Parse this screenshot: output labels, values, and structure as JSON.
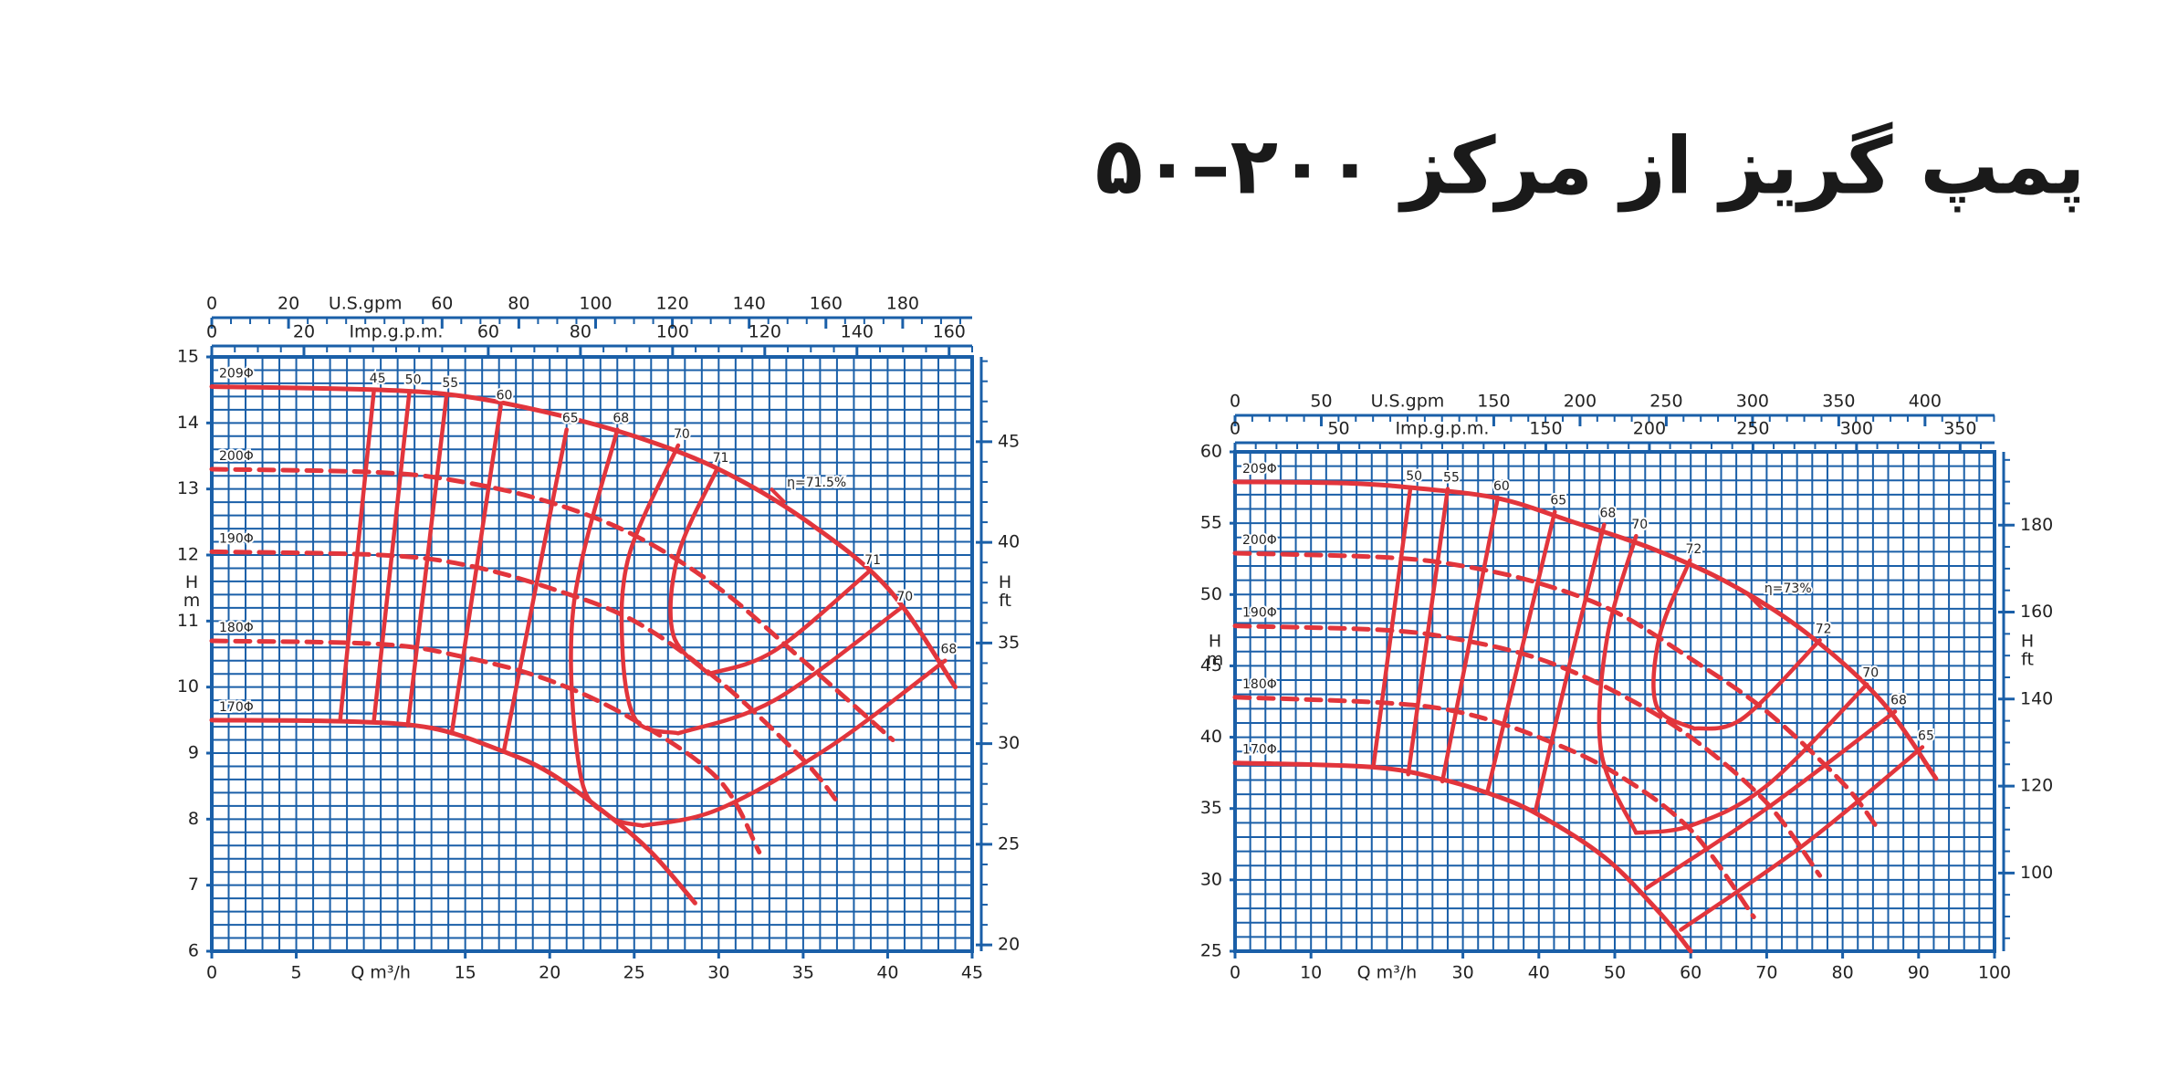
{
  "title": "پمپ گریز از مرکز ۲۰۰–۵۰",
  "chart_data": [
    {
      "type": "line",
      "xlim": [
        0,
        45
      ],
      "xticks": [
        0,
        5,
        15,
        20,
        25,
        30,
        35,
        40,
        45
      ],
      "xlabel": "Q m³/h",
      "ylim": [
        6,
        15
      ],
      "yticks": [
        6,
        7,
        8,
        9,
        10,
        11,
        12,
        13,
        14,
        15
      ],
      "ylabel": "H",
      "yunit": "m",
      "y2lim": [
        19.69,
        49.21
      ],
      "y2ticks": [
        20,
        25,
        30,
        35,
        40,
        45
      ],
      "y2minor": 1,
      "y2label": "H",
      "y2unit": "ft",
      "top_axes": [
        {
          "label": "U.S.gpm",
          "lim": [
            0,
            198.1
          ],
          "ticks": [
            0,
            20,
            60,
            80,
            100,
            120,
            140,
            160,
            180
          ],
          "minor": 5
        },
        {
          "label": "Imp.g.p.m.",
          "lim": [
            0,
            165
          ],
          "ticks": [
            0,
            20,
            60,
            80,
            100,
            120,
            140,
            160
          ],
          "minor": 5
        }
      ],
      "grid": {
        "x": 1,
        "y": 0.2
      },
      "grid_color": "#1a5fa8",
      "series": [
        {
          "name": "209Φ",
          "color": "#e2353c",
          "dash": false,
          "x": [
            0,
            10,
            15,
            20,
            25,
            30,
            35,
            40,
            44
          ],
          "values": [
            14.55,
            14.5,
            14.4,
            14.15,
            13.8,
            13.3,
            12.55,
            11.5,
            10.0
          ]
        },
        {
          "name": "200Φ",
          "color": "#e2353c",
          "dash": true,
          "x": [
            0,
            10,
            15,
            20,
            25,
            30,
            35,
            40.3
          ],
          "values": [
            13.3,
            13.25,
            13.1,
            12.8,
            12.3,
            11.5,
            10.4,
            9.2
          ]
        },
        {
          "name": "190Φ",
          "color": "#e2353c",
          "dash": true,
          "x": [
            0,
            10,
            15,
            20,
            25,
            30,
            35,
            37.2
          ],
          "values": [
            12.05,
            12.0,
            11.85,
            11.5,
            11.0,
            10.1,
            8.9,
            8.2
          ]
        },
        {
          "name": "180Φ",
          "color": "#e2353c",
          "dash": true,
          "x": [
            0,
            10,
            15,
            20,
            25,
            30,
            32.4
          ],
          "values": [
            10.7,
            10.65,
            10.45,
            10.1,
            9.5,
            8.6,
            7.5
          ]
        },
        {
          "name": "170Φ",
          "color": "#e2353c",
          "dash": false,
          "x": [
            0,
            8,
            13,
            17,
            20,
            23.5,
            26,
            28.6
          ],
          "values": [
            9.5,
            9.48,
            9.38,
            9.05,
            8.7,
            8.05,
            7.5,
            6.73
          ]
        }
      ],
      "efficiency": [
        {
          "name": "45",
          "color": "#e2353c",
          "x": [
            9.6,
            7.6
          ],
          "values": [
            14.5,
            9.5
          ]
        },
        {
          "name": "50",
          "color": "#e2353c",
          "x": [
            11.7,
            9.6
          ],
          "values": [
            14.48,
            9.5
          ]
        },
        {
          "name": "55",
          "color": "#e2353c",
          "x": [
            13.9,
            11.6
          ],
          "values": [
            14.43,
            9.42
          ]
        },
        {
          "name": "60",
          "color": "#e2353c",
          "x": [
            17.1,
            14.2
          ],
          "values": [
            14.25,
            9.3
          ]
        },
        {
          "name": "65",
          "color": "#e2353c",
          "x": [
            21.0,
            17.3
          ],
          "values": [
            13.9,
            9.05
          ]
        },
        {
          "name": "68",
          "color": "#e2353c",
          "x": [
            24,
            21.4,
            21.8,
            23.5,
            25.5
          ],
          "values": [
            13.9,
            11.2,
            8.7,
            8.05,
            7.9
          ]
        },
        {
          "name": "68",
          "color": "#e2353c",
          "x": [
            25.5,
            30,
            36.6,
            43.4
          ],
          "values": [
            7.9,
            8.15,
            9.1,
            10.4
          ]
        },
        {
          "name": "70",
          "color": "#e2353c",
          "x": [
            27.6,
            24.7,
            24.3,
            25.1,
            27.6
          ],
          "values": [
            13.66,
            12.0,
            10.6,
            9.5,
            9.3
          ]
        },
        {
          "name": "70",
          "color": "#e2353c",
          "x": [
            27.6,
            33.3,
            40.8
          ],
          "values": [
            9.3,
            9.8,
            11.2
          ]
        },
        {
          "name": "71",
          "color": "#e2353c",
          "x": [
            29.9,
            27.6,
            27.3,
            29.4
          ],
          "values": [
            13.3,
            12.0,
            10.8,
            10.2
          ]
        },
        {
          "name": "71",
          "color": "#e2353c",
          "x": [
            29.4,
            33.3,
            38.9
          ],
          "values": [
            10.2,
            10.55,
            11.75
          ]
        }
      ],
      "bep": {
        "label": "η=71.5%",
        "x": 33.5,
        "y": 12.9
      }
    },
    {
      "type": "line",
      "xlim": [
        0,
        100
      ],
      "xticks": [
        0,
        10,
        30,
        40,
        50,
        60,
        70,
        80,
        90,
        100
      ],
      "xlabel": "Q m³/h",
      "ylim": [
        25,
        60
      ],
      "yticks": [
        25,
        30,
        35,
        40,
        45,
        50,
        55,
        60
      ],
      "ylabel": "H",
      "yunit": "m",
      "y2lim": [
        82.02,
        196.85
      ],
      "y2ticks": [
        100,
        120,
        140,
        160,
        180
      ],
      "y2minor": 5,
      "y2label": "H",
      "y2unit": "ft",
      "top_axes": [
        {
          "label": "U.S.gpm",
          "lim": [
            0,
            440.3
          ],
          "ticks": [
            0,
            50,
            150,
            200,
            250,
            300,
            350,
            400
          ],
          "minor": 10
        },
        {
          "label": "Imp.g.p.m.",
          "lim": [
            0,
            366.6
          ],
          "ticks": [
            0,
            50,
            150,
            200,
            250,
            300,
            350
          ],
          "minor": 10
        }
      ],
      "grid": {
        "x": 2,
        "y": 1
      },
      "grid_color": "#1a5fa8",
      "series": [
        {
          "name": "209Φ",
          "color": "#e2353c",
          "dash": false,
          "x": [
            0,
            15,
            25,
            35,
            45,
            55,
            65,
            75,
            85,
            92.3
          ],
          "values": [
            57.9,
            57.8,
            57.4,
            56.7,
            55.0,
            53.2,
            50.8,
            47.4,
            42.6,
            37.1
          ]
        },
        {
          "name": "200Φ",
          "color": "#e2353c",
          "dash": true,
          "x": [
            0,
            20,
            30,
            40,
            50,
            60,
            70,
            80,
            84.5
          ],
          "values": [
            52.9,
            52.6,
            52.0,
            50.8,
            48.8,
            45.5,
            41.8,
            36.8,
            33.7
          ]
        },
        {
          "name": "190Φ",
          "color": "#e2353c",
          "dash": true,
          "x": [
            0,
            20,
            30,
            40,
            50,
            60,
            70,
            77
          ],
          "values": [
            47.8,
            47.5,
            46.8,
            45.5,
            43.2,
            40.0,
            35.4,
            30.3
          ]
        },
        {
          "name": "180Φ",
          "color": "#e2353c",
          "dash": true,
          "x": [
            0,
            20,
            30,
            40,
            50,
            60,
            68.3
          ],
          "values": [
            42.8,
            42.4,
            41.7,
            40.0,
            37.5,
            33.5,
            27.4
          ]
        },
        {
          "name": "170Φ",
          "color": "#e2353c",
          "dash": false,
          "x": [
            0,
            18.2,
            26.8,
            33.2,
            39.5,
            48.6,
            55.9,
            60
          ],
          "values": [
            38.2,
            37.9,
            37.1,
            36.1,
            34.7,
            31.6,
            27.7,
            25
          ]
        }
      ],
      "efficiency": [
        {
          "name": "50",
          "color": "#e2353c",
          "x": [
            23.1,
            18.2
          ],
          "values": [
            57.5,
            37.9
          ]
        },
        {
          "name": "55",
          "color": "#e2353c",
          "x": [
            28,
            22.8
          ],
          "values": [
            57.4,
            37.4
          ]
        },
        {
          "name": "60",
          "color": "#e2353c",
          "x": [
            34.6,
            27.3
          ],
          "values": [
            56.8,
            36.9
          ]
        },
        {
          "name": "65",
          "color": "#e2353c",
          "x": [
            42.1,
            33.2
          ],
          "values": [
            55.8,
            36.1
          ]
        },
        {
          "name": "68",
          "color": "#e2353c",
          "x": [
            48.6,
            44,
            39.5
          ],
          "values": [
            54.9,
            45,
            34.7
          ]
        },
        {
          "name": "70",
          "color": "#e2353c",
          "x": [
            52.8,
            49,
            48.2,
            52.8
          ],
          "values": [
            54.1,
            47,
            39,
            33.3
          ]
        },
        {
          "name": "70",
          "color": "#e2353c",
          "x": [
            52.8,
            60,
            70,
            83.2
          ],
          "values": [
            33.3,
            33.8,
            36.6,
            43.7
          ]
        },
        {
          "name": "72",
          "color": "#e2353c",
          "x": [
            59.9,
            55.9,
            55.5,
            60.5
          ],
          "values": [
            52.4,
            47.1,
            42.2,
            40.6
          ]
        },
        {
          "name": "72",
          "color": "#e2353c",
          "x": [
            60.5,
            66.8,
            77
          ],
          "values": [
            40.6,
            41.3,
            46.8
          ]
        },
        {
          "name": "68",
          "color": "#e2353c",
          "x": [
            54.1,
            70,
            86.9
          ],
          "values": [
            29.4,
            35,
            41.8
          ]
        },
        {
          "name": "65",
          "color": "#e2353c",
          "x": [
            58.7,
            75,
            90.5
          ],
          "values": [
            26.5,
            32.5,
            39.3
          ]
        }
      ],
      "bep": {
        "label": "η=73%",
        "x": 68.5,
        "y": 49.5
      }
    }
  ]
}
